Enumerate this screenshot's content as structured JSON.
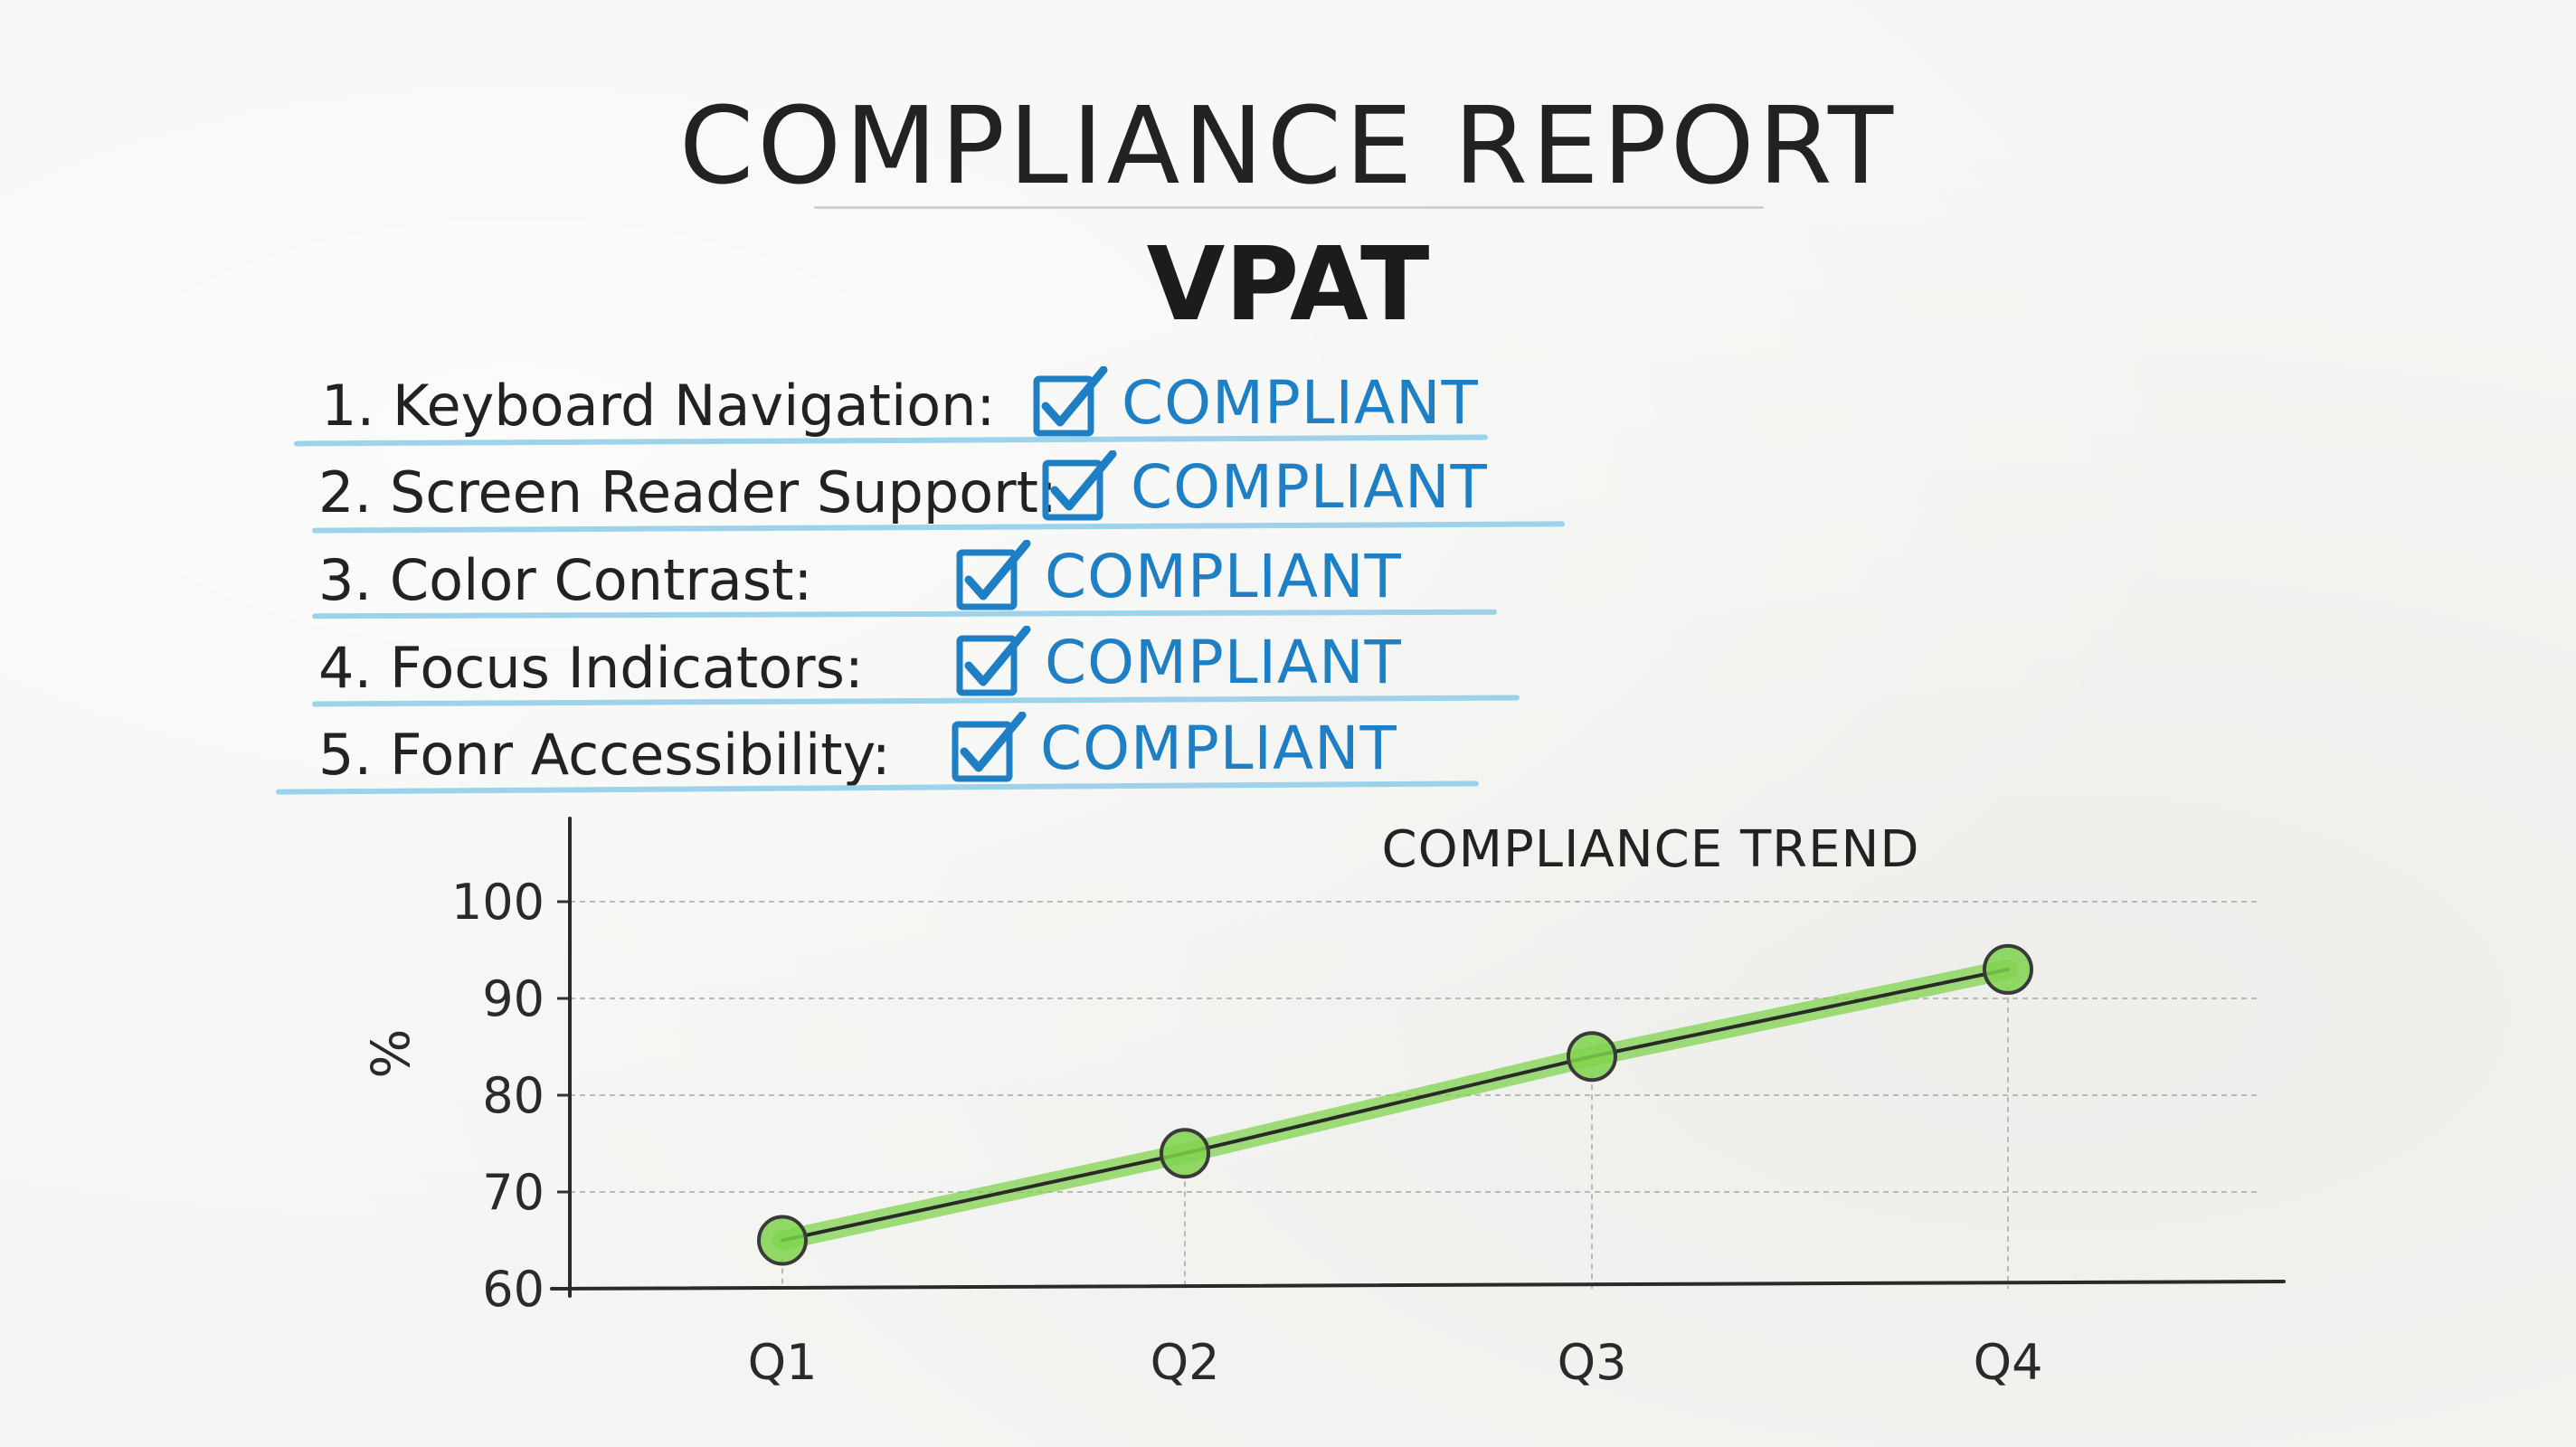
{
  "header": {
    "title": "COMPLIANCE REPORT",
    "subtitle": "VPAT"
  },
  "checklist": [
    {
      "number": "1.",
      "label": "Keyboard Navigation:",
      "status": "COMPLIANT"
    },
    {
      "number": "2.",
      "label": "Screen Reader Support:",
      "status": "COMPLIANT"
    },
    {
      "number": "3.",
      "label": "Color Contrast:",
      "status": "COMPLIANT"
    },
    {
      "number": "4.",
      "label": "Focus Indicators:",
      "status": "COMPLIANT"
    },
    {
      "number": "5.",
      "label": "Fonr Accessibility:",
      "status": "COMPLIANT"
    }
  ],
  "colors": {
    "ink": "#222222",
    "status_blue": "#1f7fc4",
    "underline_blue": "#8ccbe8",
    "trend_green": "#7fd34e"
  },
  "chart_data": {
    "type": "line",
    "title": "COMPLIANCE TREND",
    "xlabel": "",
    "ylabel": "%",
    "categories": [
      "Q1",
      "Q2",
      "Q3",
      "Q4"
    ],
    "series": [
      {
        "values": [
          65,
          74,
          84,
          93
        ]
      }
    ],
    "ylim": [
      60,
      100
    ],
    "yticks": [
      60,
      70,
      80,
      90,
      100
    ],
    "grid": true
  }
}
